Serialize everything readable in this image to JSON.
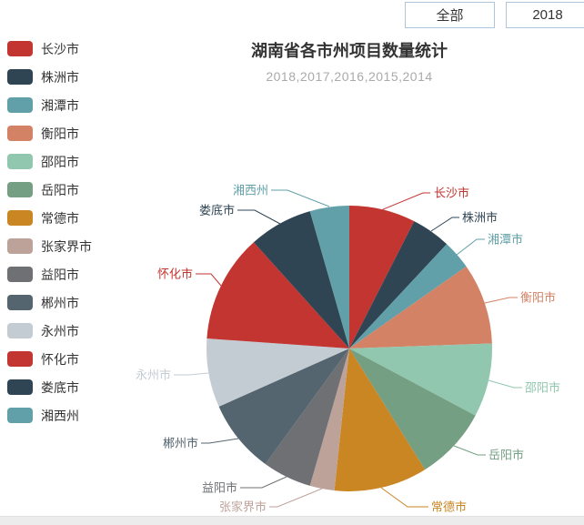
{
  "toolbar": {
    "buttons": [
      {
        "label": "全部"
      },
      {
        "label": "2018"
      }
    ],
    "button_border_color": "#aec6dc"
  },
  "chart_data": {
    "type": "pie",
    "title": "湖南省各市州项目数量统计",
    "subtitle": "2018,2017,2016,2015,2014",
    "legend_position": "left",
    "start_angle_deg": 0,
    "clockwise": true,
    "slices": [
      {
        "name": "长沙市",
        "value": 27,
        "color": "#c23531"
      },
      {
        "name": "株洲市",
        "value": 16,
        "color": "#2f4554"
      },
      {
        "name": "湘潭市",
        "value": 12,
        "color": "#61a0a8"
      },
      {
        "name": "衡阳市",
        "value": 33,
        "color": "#d48265"
      },
      {
        "name": "邵阳市",
        "value": 30,
        "color": "#91c7ae"
      },
      {
        "name": "岳阳市",
        "value": 30,
        "color": "#749f83"
      },
      {
        "name": "常德市",
        "value": 38,
        "color": "#ca8622"
      },
      {
        "name": "张家界市",
        "value": 10,
        "color": "#bda29a"
      },
      {
        "name": "益阳市",
        "value": 20,
        "color": "#6e7074"
      },
      {
        "name": "郴州市",
        "value": 30,
        "color": "#546570"
      },
      {
        "name": "永州市",
        "value": 28,
        "color": "#c4ccd3"
      },
      {
        "name": "怀化市",
        "value": 44,
        "color": "#c23531"
      },
      {
        "name": "娄底市",
        "value": 26,
        "color": "#2f4554"
      },
      {
        "name": "湘西州",
        "value": 16,
        "color": "#61a0a8"
      }
    ]
  },
  "ui_colors": {
    "title": "#333333",
    "subtitle": "#aaaaaa",
    "bottom_bar": "#ececec"
  }
}
